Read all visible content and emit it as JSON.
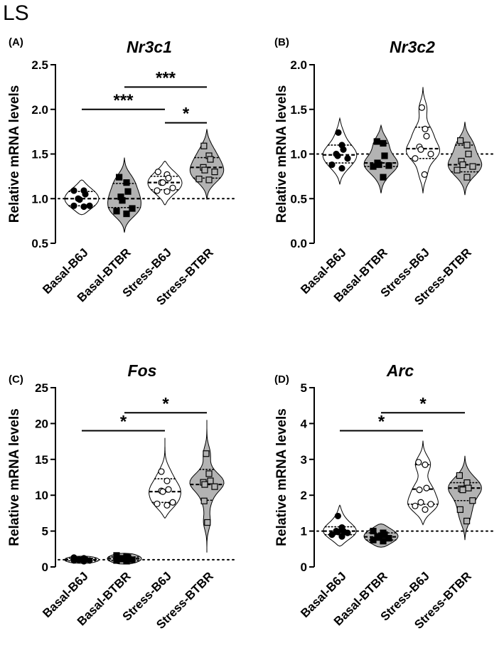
{
  "figure_title": "LS",
  "chart_data": [
    {
      "type": "violin",
      "panel_label": "(A)",
      "title": "Nr3c1",
      "ylabel": "Relative mRNA levels",
      "ylim": [
        0.5,
        2.5
      ],
      "yticks": [
        0.5,
        1.0,
        1.5,
        2.0,
        2.5
      ],
      "ytick_labels": [
        "0.5",
        "1.0",
        "1.5",
        "2.0",
        "2.5"
      ],
      "reference_line": 1.0,
      "categories": [
        "Basal-B6J",
        "Basal-BTBR",
        "Stress-B6J",
        "Stress-BTBR"
      ],
      "groups": [
        {
          "name": "Basal-B6J",
          "fill": "#ffffff",
          "marker": "circle",
          "marker_fill": "#000000",
          "points": [
            1.09,
            1.09,
            1.05,
            1.0,
            0.99,
            0.92,
            0.92,
            0.91
          ],
          "median": 1.0,
          "q1": 0.92,
          "q3": 1.08,
          "min": 0.82,
          "max": 1.21
        },
        {
          "name": "Basal-BTBR",
          "fill": "#b3b3b3",
          "marker": "square",
          "marker_fill": "#000000",
          "points": [
            1.24,
            1.18,
            1.08,
            1.02,
            0.98,
            0.89,
            0.86,
            0.83
          ],
          "median": 1.0,
          "q1": 0.9,
          "q3": 1.17,
          "min": 0.62,
          "max": 1.46
        },
        {
          "name": "Stress-B6J",
          "fill": "#ffffff",
          "marker": "circle",
          "marker_fill": "#ffffff",
          "points": [
            1.3,
            1.27,
            1.23,
            1.18,
            1.18,
            1.12,
            1.09,
            1.08
          ],
          "median": 1.18,
          "q1": 1.1,
          "q3": 1.25,
          "min": 0.93,
          "max": 1.42
        },
        {
          "name": "Stress-BTBR",
          "fill": "#b3b3b3",
          "marker": "square",
          "marker_fill": "#b3b3b3",
          "points": [
            1.59,
            1.48,
            1.44,
            1.35,
            1.32,
            1.3,
            1.22,
            1.21
          ],
          "median": 1.35,
          "q1": 1.23,
          "q3": 1.46,
          "min": 0.99,
          "max": 1.78
        }
      ],
      "significance": [
        {
          "from": "Basal-BTBR",
          "to": "Stress-BTBR",
          "label": "***",
          "y": 2.25
        },
        {
          "from": "Basal-B6J",
          "to": "Stress-B6J",
          "label": "***",
          "y": 2.0
        },
        {
          "from": "Stress-B6J",
          "to": "Stress-BTBR",
          "label": "*",
          "y": 1.85
        }
      ]
    },
    {
      "type": "violin",
      "panel_label": "(B)",
      "title": "Nr3c2",
      "ylabel": "Relative mRNA levels",
      "ylim": [
        0.0,
        2.0
      ],
      "yticks": [
        0.0,
        0.5,
        1.0,
        1.5,
        2.0
      ],
      "ytick_labels": [
        "0.0",
        "0.5",
        "1.0",
        "1.5",
        "2.0"
      ],
      "reference_line": 1.0,
      "categories": [
        "Basal-B6J",
        "Basal-BTBR",
        "Stress-B6J",
        "Stress-BTBR"
      ],
      "groups": [
        {
          "name": "Basal-B6J",
          "fill": "#ffffff",
          "marker": "circle",
          "marker_fill": "#000000",
          "points": [
            1.24,
            1.1,
            1.05,
            1.0,
            0.98,
            0.95,
            0.88,
            0.84
          ],
          "median": 0.99,
          "q1": 0.9,
          "q3": 1.1,
          "min": 0.66,
          "max": 1.4
        },
        {
          "name": "Basal-BTBR",
          "fill": "#b3b3b3",
          "marker": "square",
          "marker_fill": "#000000",
          "points": [
            1.14,
            1.12,
            0.98,
            0.9,
            0.88,
            0.87,
            0.86,
            0.74
          ],
          "median": 0.9,
          "q1": 0.86,
          "q3": 1.12,
          "min": 0.56,
          "max": 1.32
        },
        {
          "name": "Stress-B6J",
          "fill": "#ffffff",
          "marker": "circle",
          "marker_fill": "#ffffff",
          "points": [
            1.52,
            1.28,
            1.2,
            1.08,
            1.05,
            1.0,
            0.95,
            0.77
          ],
          "median": 1.06,
          "q1": 0.95,
          "q3": 1.3,
          "min": 0.56,
          "max": 1.75
        },
        {
          "name": "Stress-BTBR",
          "fill": "#b3b3b3",
          "marker": "square",
          "marker_fill": "#b3b3b3",
          "points": [
            1.15,
            1.1,
            1.0,
            0.92,
            0.88,
            0.86,
            0.82,
            0.74
          ],
          "median": 0.88,
          "q1": 0.8,
          "q3": 1.1,
          "min": 0.54,
          "max": 1.36
        }
      ],
      "significance": []
    },
    {
      "type": "violin",
      "panel_label": "(C)",
      "title": "Fos",
      "ylabel": "Relative mRNA levels",
      "ylim": [
        0,
        25
      ],
      "yticks": [
        0,
        5,
        10,
        15,
        20,
        25
      ],
      "ytick_labels": [
        "0",
        "5",
        "10",
        "15",
        "20",
        "25"
      ],
      "reference_line": 1.0,
      "categories": [
        "Basal-B6J",
        "Basal-BTBR",
        "Stress-B6J",
        "Stress-BTBR"
      ],
      "groups": [
        {
          "name": "Basal-B6J",
          "fill": "#ffffff",
          "marker": "circle",
          "marker_fill": "#000000",
          "points": [
            1.3,
            1.2,
            1.1,
            1.0,
            1.0,
            0.9,
            0.9,
            0.8
          ],
          "median": 1.0,
          "q1": 0.85,
          "q3": 1.2,
          "min": 0.5,
          "max": 1.5
        },
        {
          "name": "Basal-BTBR",
          "fill": "#b3b3b3",
          "marker": "square",
          "marker_fill": "#000000",
          "points": [
            1.6,
            1.4,
            1.3,
            1.2,
            1.1,
            1.0,
            0.9,
            0.8
          ],
          "median": 1.15,
          "q1": 0.9,
          "q3": 1.4,
          "min": 0.4,
          "max": 1.9
        },
        {
          "name": "Stress-B6J",
          "fill": "#ffffff",
          "marker": "circle",
          "marker_fill": "#ffffff",
          "points": [
            13.3,
            12.0,
            10.8,
            10.6,
            10.5,
            9.0,
            8.8,
            8.6
          ],
          "median": 10.5,
          "q1": 9.0,
          "q3": 12.3,
          "min": 6.8,
          "max": 18.0
        },
        {
          "name": "Stress-BTBR",
          "fill": "#b3b3b3",
          "marker": "square",
          "marker_fill": "#b3b3b3",
          "points": [
            15.8,
            13.0,
            12.0,
            11.8,
            11.5,
            11.2,
            9.2,
            6.2
          ],
          "median": 11.5,
          "q1": 9.3,
          "q3": 13.6,
          "min": 2.0,
          "max": 20.5
        }
      ],
      "significance": [
        {
          "from": "Basal-BTBR",
          "to": "Stress-BTBR",
          "label": "*",
          "y": 21.5
        },
        {
          "from": "Basal-B6J",
          "to": "Stress-B6J",
          "label": "*",
          "y": 19.0
        }
      ]
    },
    {
      "type": "violin",
      "panel_label": "(D)",
      "title": "Arc",
      "ylabel": "Relative mRNA levels",
      "ylim": [
        0,
        5
      ],
      "yticks": [
        0,
        1,
        2,
        3,
        4,
        5
      ],
      "ytick_labels": [
        "0",
        "1",
        "2",
        "3",
        "4",
        "5"
      ],
      "reference_line": 1.0,
      "categories": [
        "Basal-B6J",
        "Basal-BTBR",
        "Stress-B6J",
        "Stress-BTBR"
      ],
      "groups": [
        {
          "name": "Basal-B6J",
          "fill": "#ffffff",
          "marker": "circle",
          "marker_fill": "#000000",
          "points": [
            1.42,
            1.1,
            1.0,
            1.0,
            0.98,
            0.95,
            0.9,
            0.85
          ],
          "median": 1.0,
          "q1": 0.9,
          "q3": 1.12,
          "min": 0.58,
          "max": 1.72
        },
        {
          "name": "Basal-BTBR",
          "fill": "#b3b3b3",
          "marker": "square",
          "marker_fill": "#000000",
          "points": [
            1.0,
            0.95,
            0.9,
            0.85,
            0.82,
            0.8,
            0.75,
            0.72
          ],
          "median": 0.84,
          "q1": 0.75,
          "q3": 0.95,
          "min": 0.55,
          "max": 1.2
        },
        {
          "name": "Stress-B6J",
          "fill": "#ffffff",
          "marker": "circle",
          "marker_fill": "#ffffff",
          "points": [
            2.92,
            2.85,
            2.2,
            2.15,
            1.8,
            1.75,
            1.7,
            1.6
          ],
          "median": 2.17,
          "q1": 1.75,
          "q3": 2.85,
          "min": 1.18,
          "max": 3.52
        },
        {
          "name": "Stress-BTBR",
          "fill": "#b3b3b3",
          "marker": "square",
          "marker_fill": "#b3b3b3",
          "points": [
            2.55,
            2.35,
            2.2,
            2.18,
            2.15,
            1.85,
            1.6,
            1.28
          ],
          "median": 2.2,
          "q1": 1.85,
          "q3": 2.35,
          "min": 0.75,
          "max": 3.1
        }
      ],
      "significance": [
        {
          "from": "Basal-BTBR",
          "to": "Stress-BTBR",
          "label": "*",
          "y": 4.3
        },
        {
          "from": "Basal-B6J",
          "to": "Stress-B6J",
          "label": "*",
          "y": 3.8
        }
      ]
    }
  ]
}
